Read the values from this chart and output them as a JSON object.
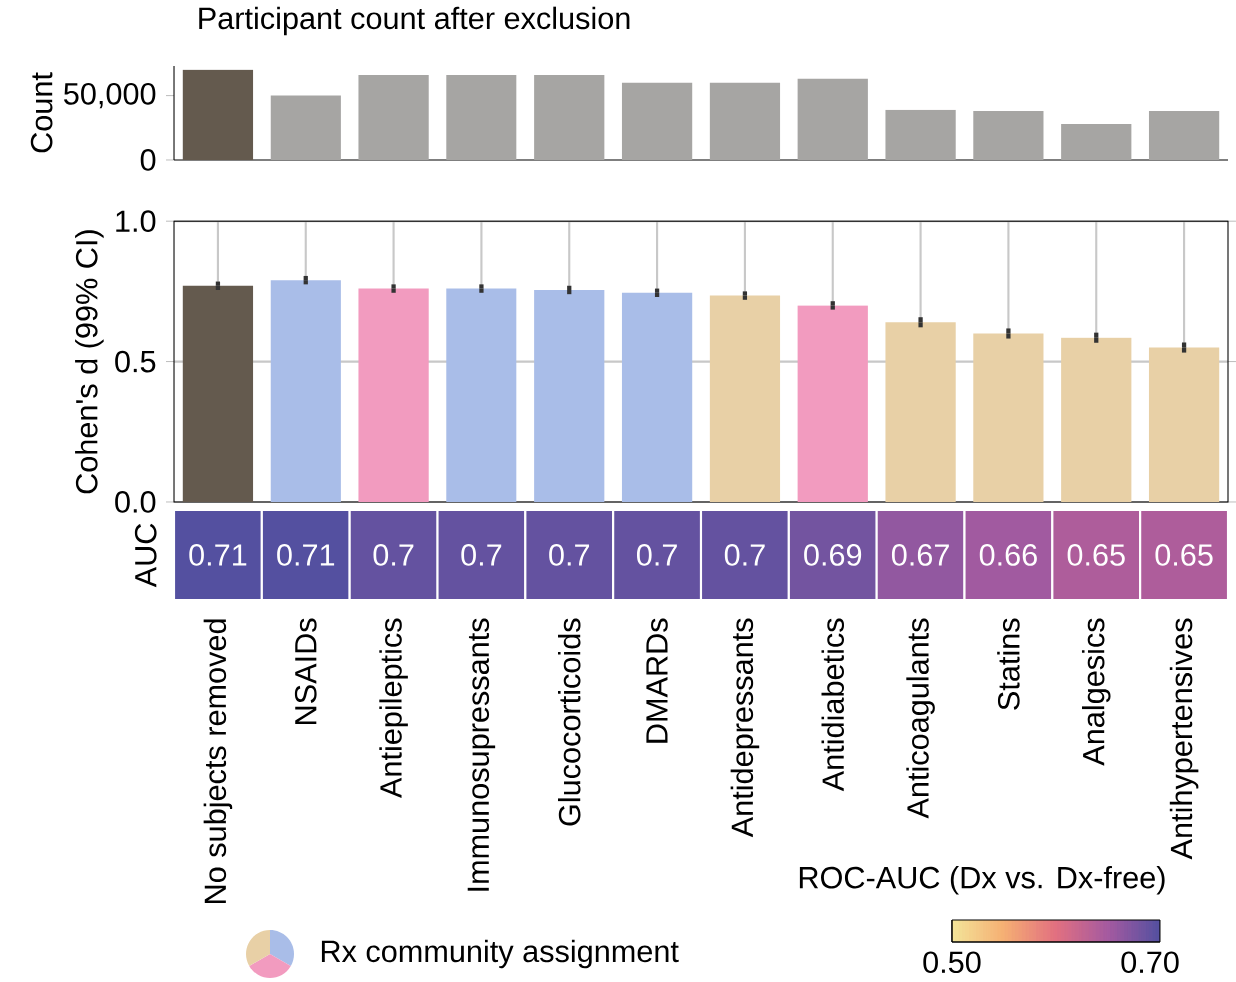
{
  "chart_data": [
    {
      "type": "bar",
      "title": "Participant count after exclusion",
      "ylabel": "Count",
      "categories": [
        null,
        null,
        null,
        null,
        null,
        null,
        null,
        null,
        null,
        null,
        null,
        null
      ],
      "values": [
        70000,
        50000,
        66000,
        66000,
        66000,
        60000,
        60000,
        63000,
        39000,
        38000,
        28000,
        38000
      ],
      "colors": [
        "#645a4e",
        "#a6a5a3",
        "#a6a5a3",
        "#a6a5a3",
        "#a6a5a3",
        "#a6a5a3",
        "#a6a5a3",
        "#a6a5a3",
        "#a6a5a3",
        "#a6a5a3",
        "#a6a5a3",
        "#a6a5a3"
      ],
      "ylim": [
        0,
        73000
      ],
      "yticks": [
        0,
        {
          "value": 50000,
          "label": "50,000"
        }
      ],
      "tick_labels": "y"
    },
    {
      "type": "bar",
      "ylabel": "Cohen's d (99% CI)",
      "categories": [
        null,
        null,
        null,
        null,
        null,
        null,
        null,
        null,
        null,
        null,
        null,
        null
      ],
      "values": [
        0.77,
        0.79,
        0.76,
        0.76,
        0.755,
        0.745,
        0.735,
        0.7,
        0.64,
        0.6,
        0.585,
        0.55
      ],
      "errors": [
        0.015,
        0.015,
        0.015,
        0.015,
        0.015,
        0.015,
        0.015,
        0.015,
        0.018,
        0.018,
        0.018,
        0.018
      ],
      "colors": [
        "#645a4e",
        "#a9bde8",
        "#f29bbf",
        "#a9bde8",
        "#a9bde8",
        "#a9bde8",
        "#e8d0a6",
        "#f29bbf",
        "#e8d0a6",
        "#e8d0a6",
        "#e8d0a6",
        "#e8d0a6"
      ],
      "ylim": [
        0,
        1.0
      ],
      "yticks": [
        {
          "value": 0,
          "label": "0.0"
        },
        0.5,
        {
          "value": 1,
          "label": "1.0"
        }
      ],
      "grid": true,
      "tick_labels": "y",
      "annotations": [
        "Rx community assignment"
      ]
    },
    {
      "type": "heatmap",
      "y_categories": [
        "AUC"
      ],
      "categories": [
        "No subjects removed",
        "NSAIDs",
        "Antiepileptics",
        "Immunosupressants",
        "Glucocorticoids",
        "DMARDs",
        "Antidepressants",
        "Antidiabetics",
        "Anticoagulants",
        "Statins",
        "Analgesics",
        "Antihypertensives"
      ],
      "cells": [
        [
          0.71,
          0.71,
          0.7,
          0.7,
          0.7,
          0.7,
          0.7,
          0.69,
          0.67,
          0.66,
          0.65,
          0.65
        ]
      ],
      "cell_labels": [
        [
          "0.71",
          "0.71",
          "0.7",
          "0.7",
          "0.7",
          "0.7",
          "0.7",
          "0.69",
          "0.67",
          "0.66",
          "0.65",
          "0.65"
        ]
      ],
      "clim": [
        0.5,
        0.71
      ],
      "cticks": [
        {
          "value": 0.5,
          "label": "0.50"
        },
        {
          "value": 0.7,
          "label": "0.70"
        }
      ],
      "clabel": "ROC-AUC (Dx vs. Dx-free)",
      "tick_labels": "x"
    }
  ]
}
